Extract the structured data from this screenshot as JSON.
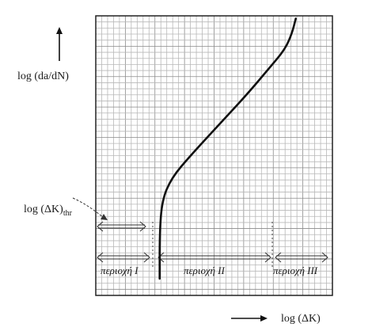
{
  "chart_data": {
    "type": "line",
    "title": "",
    "ylabel": "log (da/dN)",
    "xlabel": "log (ΔK)",
    "threshold_label": "log (ΔK)",
    "threshold_subscript": "thr",
    "region_labels": [
      "περιοχή I",
      "περιοχή II",
      "περιοχή III"
    ],
    "grid": true,
    "ticks": "none",
    "series": [
      {
        "x": [
          0.27,
          0.27,
          0.28,
          0.32,
          0.4,
          0.52,
          0.64,
          0.73,
          0.8,
          0.83,
          0.845
        ],
        "y": [
          0.06,
          0.22,
          0.34,
          0.42,
          0.5,
          0.61,
          0.72,
          0.81,
          0.88,
          0.94,
          0.99
        ]
      }
    ]
  }
}
